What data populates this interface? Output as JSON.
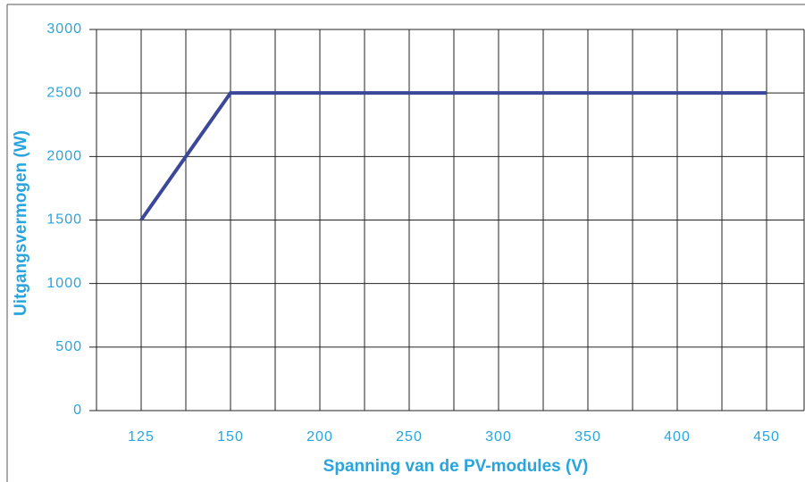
{
  "chart_data": {
    "type": "line",
    "x_label": "Spanning van de PV-modules (V)",
    "y_label": "Uitgangsvermogen (W)",
    "categories": [
      "125",
      "150",
      "200",
      "250",
      "300",
      "350",
      "400",
      "450"
    ],
    "values": [
      1500,
      2500,
      2500,
      2500,
      2500,
      2500,
      2500,
      2500
    ],
    "color": "#3b4799",
    "label_color": "#2aa4dc",
    "ylim": [
      0,
      3000
    ],
    "yticks": [
      0,
      500,
      1000,
      1500,
      2000,
      2500,
      3000
    ],
    "grid": true
  }
}
